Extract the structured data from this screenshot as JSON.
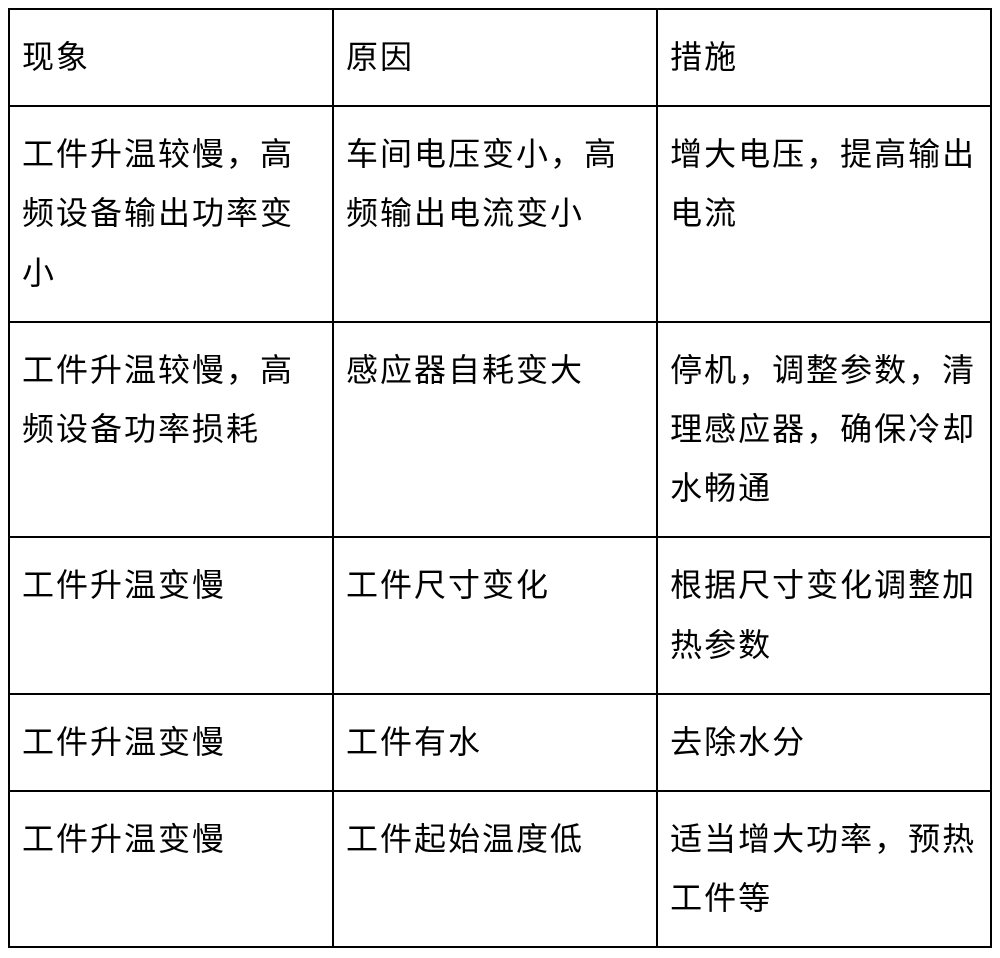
{
  "table": {
    "type": "table",
    "columns": [
      "现象",
      "原因",
      "措施"
    ],
    "rows": [
      [
        "工件升温较慢，高频设备输出功率变小",
        "车间电压变小，高频输出电流变小",
        "增大电压，提高输出电流"
      ],
      [
        "工件升温较慢，高频设备功率损耗",
        "感应器自耗变大",
        "停机，调整参数，清理感应器，确保冷却水畅通"
      ],
      [
        "工件升温变慢",
        "工件尺寸变化",
        "根据尺寸变化调整加热参数"
      ],
      [
        "工件升温变慢",
        "工件有水",
        "去除水分"
      ],
      [
        "工件升温变慢",
        "工件起始温度低",
        "适当增大功率，预热工件等"
      ]
    ],
    "border_color": "#000000",
    "background_color": "#ffffff",
    "text_color": "#000000",
    "font_size": 32,
    "line_height": 1.85
  }
}
